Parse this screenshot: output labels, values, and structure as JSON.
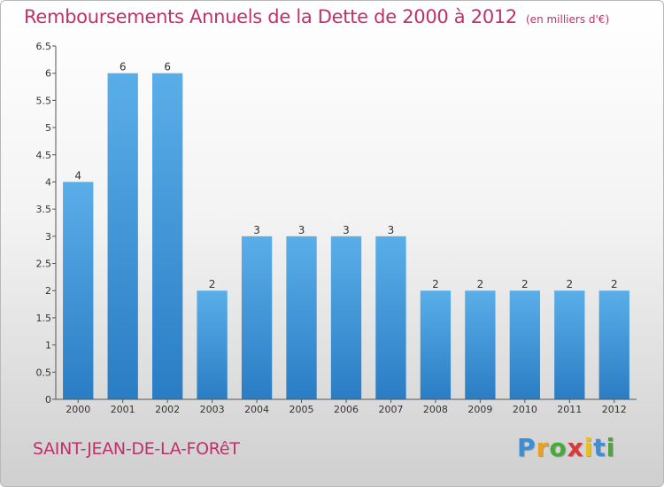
{
  "chart_data": {
    "type": "bar",
    "title": "Remboursements Annuels de la Dette de 2000 à 2012",
    "subtitle": "(en milliers d'€)",
    "xlabel": "",
    "ylabel": "",
    "categories": [
      "2000",
      "2001",
      "2002",
      "2003",
      "2004",
      "2005",
      "2006",
      "2007",
      "2008",
      "2009",
      "2010",
      "2011",
      "2012"
    ],
    "values": [
      4,
      6,
      6,
      2,
      3,
      3,
      3,
      3,
      2,
      2,
      2,
      2,
      2
    ],
    "data_labels": [
      "4",
      "6",
      "6",
      "2",
      "3",
      "3",
      "3",
      "3",
      "2",
      "2",
      "2",
      "2",
      "2"
    ],
    "ylim": [
      0,
      6.5
    ],
    "y_ticks": [
      0,
      0.5,
      1,
      1.5,
      2,
      2.5,
      3,
      3.5,
      4,
      4.5,
      5,
      5.5,
      6,
      6.5
    ],
    "y_tick_labels": [
      "0",
      "0.5",
      "1",
      "1.5",
      "2",
      "2.5",
      "3",
      "3.5",
      "4",
      "4.5",
      "5",
      "5.5",
      "6",
      "6.5"
    ],
    "grid": false,
    "legend": "none",
    "bar_color_top": "#5aaee8",
    "bar_color_bottom": "#2a7dc4"
  },
  "commune": "SAINT-JEAN-DE-LA-FORêT",
  "brand": {
    "letters": [
      "P",
      "r",
      "o",
      "x",
      "i",
      "t",
      "i"
    ],
    "colors": [
      "#3a8fd8",
      "#e8a020",
      "#49a83a",
      "#d83a3a",
      "#e8c020",
      "#3a8fd8",
      "#49a83a"
    ]
  },
  "accent_color": "#c0306a"
}
